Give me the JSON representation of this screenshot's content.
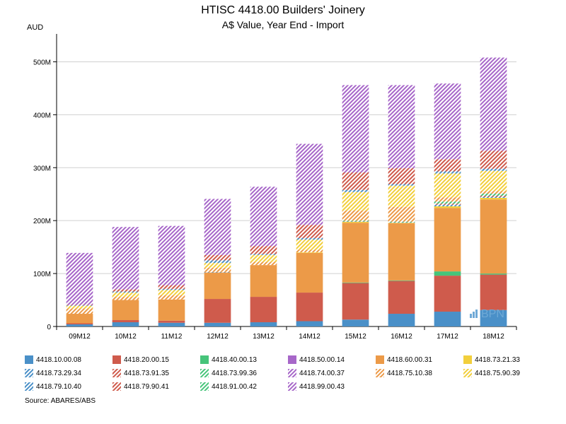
{
  "header": {
    "title": "HTISC 4418.00 Builders' Joinery",
    "subtitle": "A$ Value, Year End - Import",
    "unit": "AUD"
  },
  "footer": {
    "source": "Source: ABARES/ABS"
  },
  "logo": {
    "text": "BPN",
    "color": "#6fa9d6"
  },
  "chart_data": {
    "type": "bar",
    "stacked": true,
    "title": "HTISC 4418.00 Builders' Joinery",
    "subtitle": "A$ Value, Year End - Import",
    "ylabel": "AUD",
    "ylim": [
      0,
      550
    ],
    "yticks": [
      0,
      100,
      200,
      300,
      400,
      500
    ],
    "ytick_labels": [
      "0",
      "100M",
      "200M",
      "300M",
      "400M",
      "500M"
    ],
    "grid": true,
    "legend_position": "bottom",
    "categories": [
      "09M12",
      "10M12",
      "11M12",
      "12M12",
      "13M12",
      "14M12",
      "15M12",
      "16M12",
      "17M12",
      "18M12"
    ],
    "series": [
      {
        "name": "4418.10.00.08",
        "color": "#4a90c8",
        "pattern": "solid",
        "values": [
          4,
          8,
          7,
          7,
          8,
          10,
          13,
          24,
          28,
          31
        ]
      },
      {
        "name": "4418.20.00.15",
        "color": "#cf5b4c",
        "pattern": "solid",
        "values": [
          2,
          4,
          4,
          45,
          48,
          54,
          69,
          62,
          68,
          67
        ]
      },
      {
        "name": "4418.40.00.13",
        "color": "#46c47a",
        "pattern": "solid",
        "values": [
          0,
          0,
          0,
          0,
          0,
          0,
          1,
          1,
          8,
          2
        ]
      },
      {
        "name": "4418.50.00.14",
        "color": "#a767c9",
        "pattern": "solid",
        "values": [
          0,
          0,
          0,
          0,
          0,
          0,
          0,
          0,
          0,
          0
        ]
      },
      {
        "name": "4418.60.00.31",
        "color": "#ec9a48",
        "pattern": "solid",
        "values": [
          18,
          38,
          40,
          50,
          60,
          75,
          113,
          108,
          120,
          140
        ]
      },
      {
        "name": "4418.73.21.33",
        "color": "#f2cf3c",
        "pattern": "solid",
        "values": [
          0,
          0,
          0,
          0,
          0,
          1,
          2,
          1,
          3,
          3
        ]
      },
      {
        "name": "4418.73.29.34",
        "color": "#4a90c8",
        "pattern": "hatched",
        "values": [
          0,
          0,
          0,
          1,
          0,
          0,
          1,
          1,
          3,
          2
        ]
      },
      {
        "name": "4418.73.91.35",
        "color": "#cf5b4c",
        "pattern": "hatched",
        "values": [
          0,
          0,
          0,
          0,
          0,
          0,
          0,
          0,
          2,
          2
        ]
      },
      {
        "name": "4418.73.99.36",
        "color": "#46c47a",
        "pattern": "hatched",
        "values": [
          0,
          0,
          0,
          0,
          0,
          0,
          1,
          1,
          4,
          4
        ]
      },
      {
        "name": "4418.74.00.37",
        "color": "#a767c9",
        "pattern": "hatched",
        "values": [
          0,
          0,
          0,
          0,
          0,
          0,
          0,
          0,
          0,
          0
        ]
      },
      {
        "name": "4418.75.10.38",
        "color": "#ec9a48",
        "pattern": "hatched",
        "values": [
          10,
          6,
          8,
          8,
          6,
          5,
          19,
          28,
          8,
          5
        ]
      },
      {
        "name": "4418.75.90.39",
        "color": "#f2cf3c",
        "pattern": "hatched",
        "values": [
          5,
          8,
          10,
          9,
          13,
          19,
          35,
          40,
          45,
          38
        ]
      },
      {
        "name": "4418.79.10.40",
        "color": "#4a90c8",
        "pattern": "hatched",
        "values": [
          1,
          2,
          2,
          5,
          2,
          3,
          4,
          3,
          4,
          4
        ]
      },
      {
        "name": "4418.79.90.41",
        "color": "#cf5b4c",
        "pattern": "hatched",
        "values": [
          1,
          4,
          7,
          10,
          15,
          25,
          33,
          30,
          23,
          34
        ]
      },
      {
        "name": "4418.91.00.42",
        "color": "#46c47a",
        "pattern": "hatched",
        "values": [
          0,
          0,
          0,
          0,
          0,
          0,
          0,
          0,
          0,
          0
        ]
      },
      {
        "name": "4418.99.00.43",
        "color": "#a767c9",
        "pattern": "hatched",
        "values": [
          98,
          118,
          112,
          106,
          112,
          153,
          165,
          157,
          143,
          176
        ]
      }
    ]
  }
}
